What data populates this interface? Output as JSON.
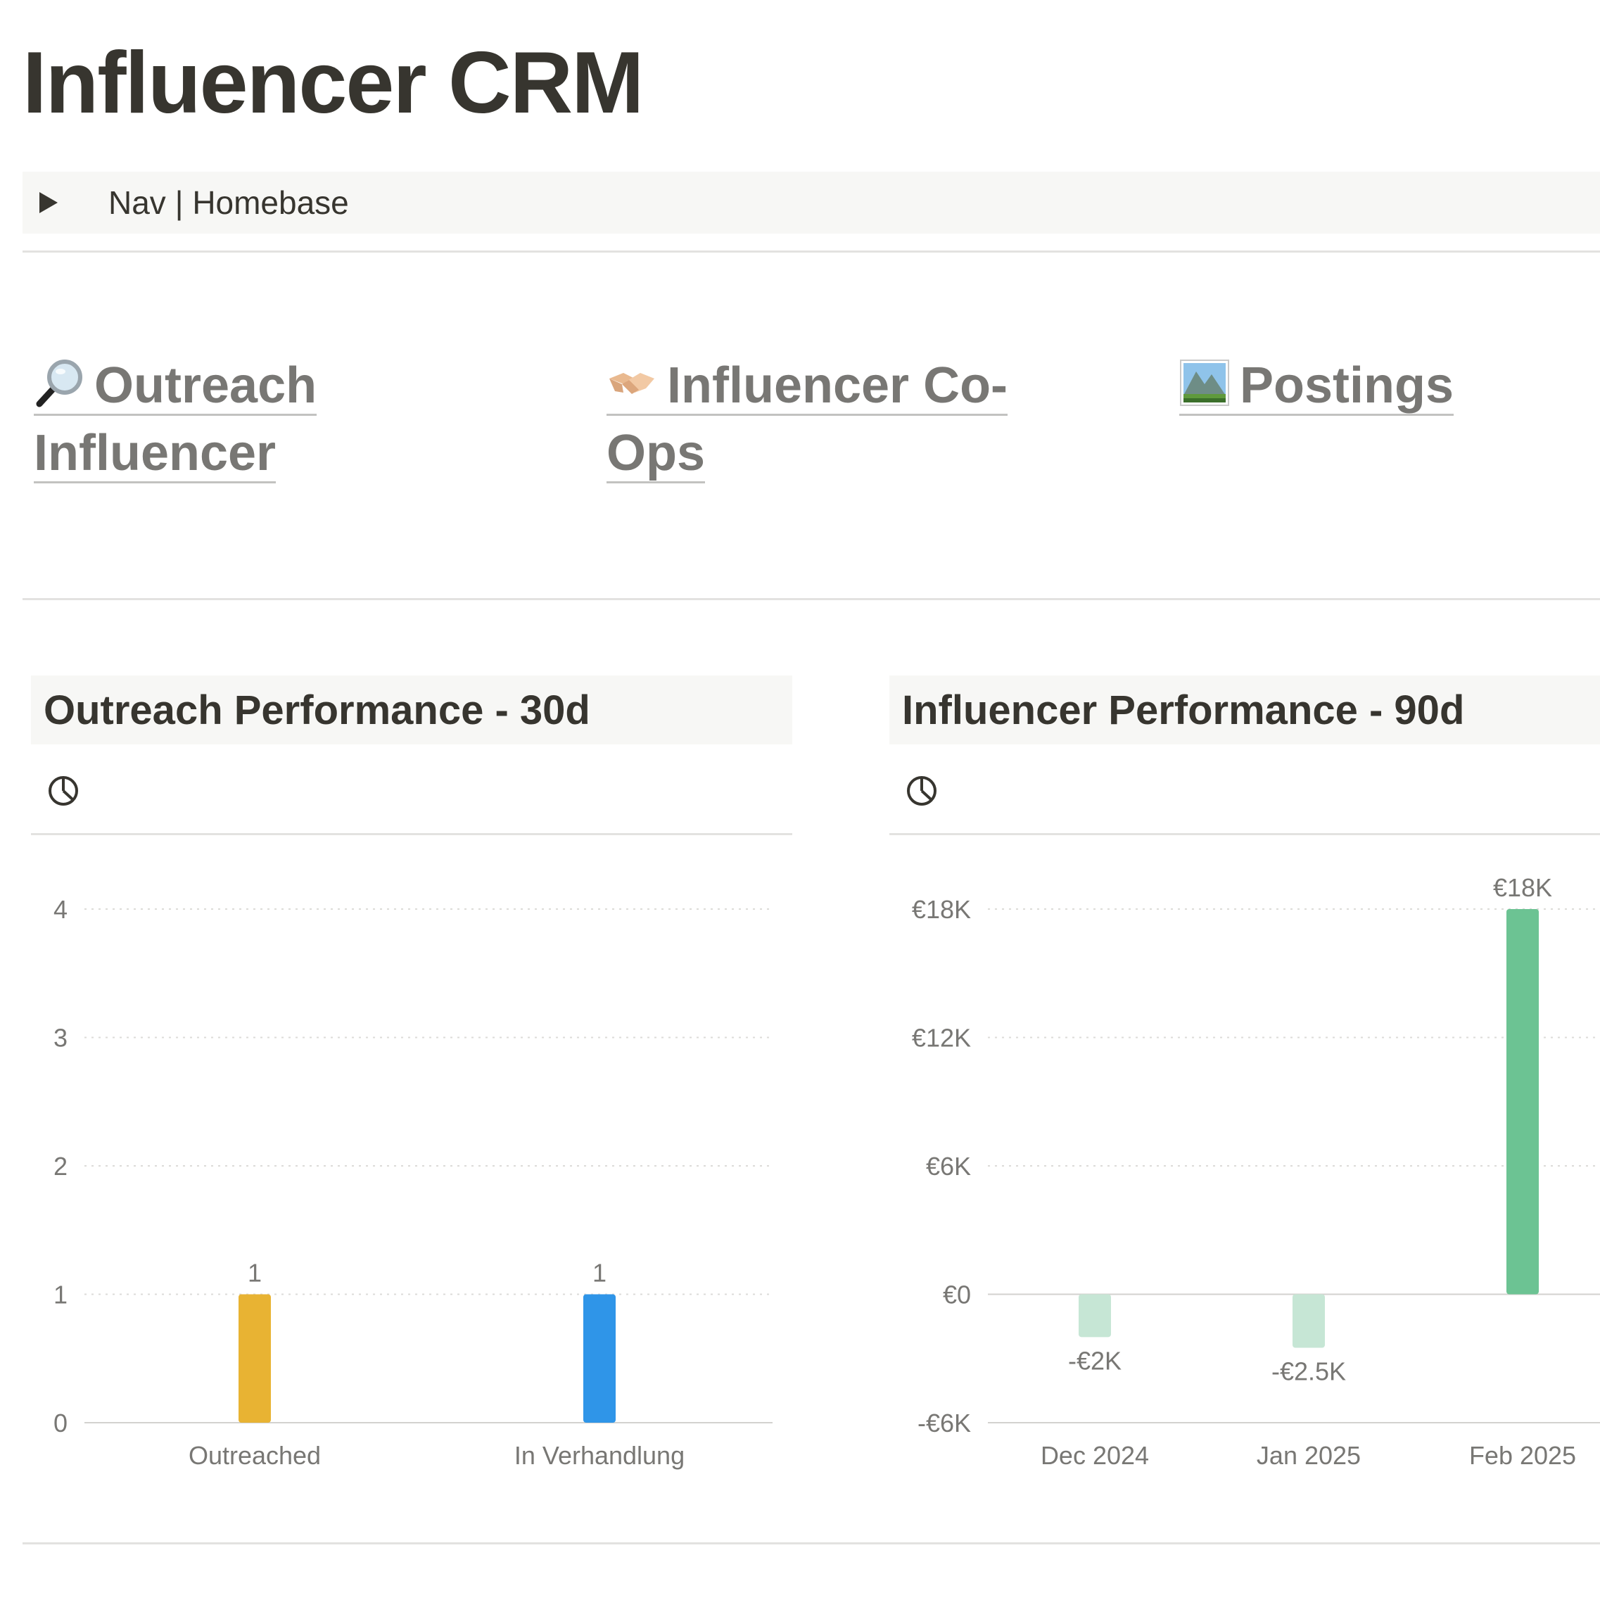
{
  "page": {
    "title": "Influencer CRM"
  },
  "toggle": {
    "label": "Nav | Homebase"
  },
  "nav_links": [
    {
      "icon": "magnifying-glass-icon",
      "line1": "Outreach",
      "line2": "Influencer"
    },
    {
      "icon": "handshake-icon",
      "line1": "Influencer Co-",
      "line2": "Ops"
    },
    {
      "icon": "landscape-picture-icon",
      "line1": "Postings",
      "line2": ""
    }
  ],
  "panels": {
    "outreach": {
      "title": "Outreach Performance - 30d"
    },
    "influencer": {
      "title": "Influencer Performance - 90d"
    }
  },
  "chart_data": [
    {
      "type": "bar",
      "categories": [
        "Outreached",
        "In Verhandlung"
      ],
      "values": [
        1,
        1
      ],
      "data_labels": [
        "1",
        "1"
      ],
      "colors": [
        "#e8b333",
        "#2f95e8"
      ],
      "ylim": [
        0,
        4
      ],
      "yticks": [
        0,
        1,
        2,
        3,
        4
      ],
      "ytick_labels": [
        "0",
        "1",
        "2",
        "3",
        "4"
      ],
      "grid": true
    },
    {
      "type": "bar",
      "categories": [
        "Dec 2024",
        "Jan 2025",
        "Feb 2025"
      ],
      "values": [
        -2000,
        -2500,
        18000
      ],
      "data_labels": [
        "-€2K",
        "-€2.5K",
        "€18K"
      ],
      "colors": [
        "#c6e6d5",
        "#c6e6d5",
        "#6cc393"
      ],
      "ylim": [
        -6000,
        18000
      ],
      "yticks": [
        -6000,
        0,
        6000,
        12000,
        18000
      ],
      "ytick_labels": [
        "-€6K",
        "€0",
        "€6K",
        "€12K",
        "€18K"
      ],
      "grid": true
    }
  ]
}
